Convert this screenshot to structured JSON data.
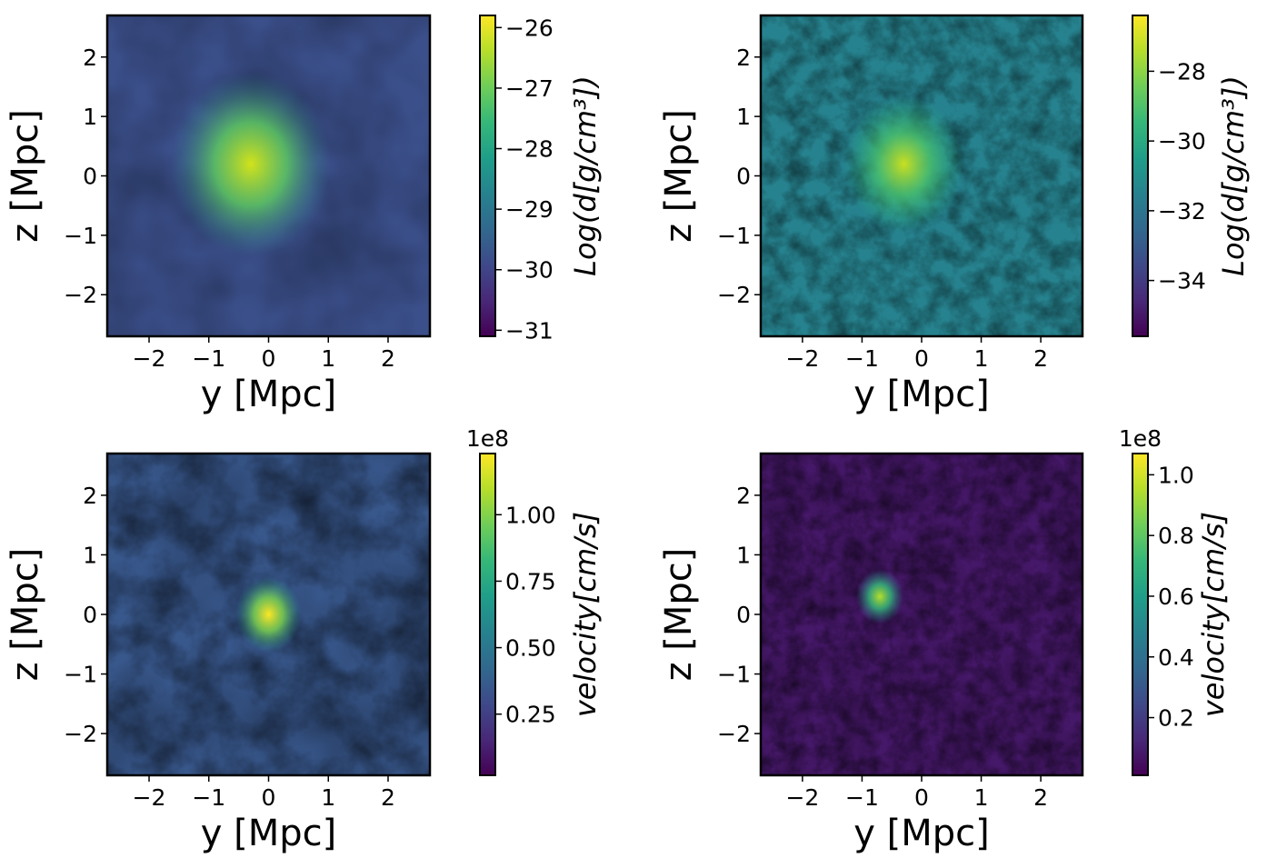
{
  "chart_data": [
    {
      "type": "heatmap",
      "quantity": "gas density (log)",
      "xlabel": "y [Mpc]",
      "ylabel": "z [Mpc]",
      "xlim": [
        -2.7,
        2.7
      ],
      "ylim": [
        -2.7,
        2.7
      ],
      "xticks": [
        -2,
        -1,
        0,
        1,
        2
      ],
      "yticks": [
        -2,
        -1,
        0,
        1,
        2
      ],
      "xtick_labels": [
        "−2",
        "−1",
        "0",
        "1",
        "2"
      ],
      "ytick_labels": [
        "−2",
        "−1",
        "0",
        "1",
        "2"
      ],
      "colormap": "viridis",
      "colorbar": {
        "label": "Log(d[g/cm³])",
        "vmin": -31.1,
        "vmax": -25.8,
        "ticks": [
          -31,
          -30,
          -29,
          -28,
          -27,
          -26
        ],
        "tick_labels": [
          "−31",
          "−30",
          "−29",
          "−28",
          "−27",
          "−26"
        ],
        "offset_text": ""
      },
      "features": {
        "peak_center": [
          -0.3,
          0.2
        ],
        "peak_value": -26.3,
        "background": -29.8,
        "structure": "smooth"
      }
    },
    {
      "type": "heatmap",
      "quantity": "gas density (log)",
      "xlabel": "y [Mpc]",
      "ylabel": "z [Mpc]",
      "xlim": [
        -2.7,
        2.7
      ],
      "ylim": [
        -2.7,
        2.7
      ],
      "xticks": [
        -2,
        -1,
        0,
        1,
        2
      ],
      "yticks": [
        -2,
        -1,
        0,
        1,
        2
      ],
      "xtick_labels": [
        "−2",
        "−1",
        "0",
        "1",
        "2"
      ],
      "ytick_labels": [
        "−2",
        "−1",
        "0",
        "1",
        "2"
      ],
      "colormap": "viridis",
      "colorbar": {
        "label": "Log(d[g/cm³])",
        "vmin": -35.6,
        "vmax": -26.4,
        "ticks": [
          -34,
          -32,
          -30,
          -28
        ],
        "tick_labels": [
          "−34",
          "−32",
          "−30",
          "−28"
        ],
        "offset_text": ""
      },
      "features": {
        "peak_center": [
          -0.3,
          0.2
        ],
        "peak_value": -27.5,
        "background": -31.5,
        "structure": "turbulent"
      }
    },
    {
      "type": "heatmap",
      "quantity": "velocity magnitude",
      "xlabel": "y [Mpc]",
      "ylabel": "z [Mpc]",
      "xlim": [
        -2.7,
        2.7
      ],
      "ylim": [
        -2.7,
        2.7
      ],
      "xticks": [
        -2,
        -1,
        0,
        1,
        2
      ],
      "yticks": [
        -2,
        -1,
        0,
        1,
        2
      ],
      "xtick_labels": [
        "−2",
        "−1",
        "0",
        "1",
        "2"
      ],
      "ytick_labels": [
        "−2",
        "−1",
        "0",
        "1",
        "2"
      ],
      "colormap": "viridis",
      "colorbar": {
        "label": "velocity[cm/s]",
        "vmin": 0.02,
        "vmax": 1.23,
        "ticks": [
          0.25,
          0.5,
          0.75,
          1.0
        ],
        "tick_labels": [
          "0.25",
          "0.50",
          "0.75",
          "1.00"
        ],
        "offset_text": "1e8"
      },
      "features": {
        "peak_center": [
          0.0,
          0.0
        ],
        "peak_value": 1.2,
        "background": 0.35,
        "structure": "filamentary"
      }
    },
    {
      "type": "heatmap",
      "quantity": "velocity magnitude",
      "xlabel": "y [Mpc]",
      "ylabel": "z [Mpc]",
      "xlim": [
        -2.7,
        2.7
      ],
      "ylim": [
        -2.7,
        2.7
      ],
      "xticks": [
        -2,
        -1,
        0,
        1,
        2
      ],
      "yticks": [
        -2,
        -1,
        0,
        1,
        2
      ],
      "xtick_labels": [
        "−2",
        "−1",
        "0",
        "1",
        "2"
      ],
      "ytick_labels": [
        "−2",
        "−1",
        "0",
        "1",
        "2"
      ],
      "colormap": "viridis",
      "colorbar": {
        "label": "velocity[cm/s]",
        "vmin": 0.01,
        "vmax": 1.07,
        "ticks": [
          0.2,
          0.4,
          0.6,
          0.8,
          1.0
        ],
        "tick_labels": [
          "0.2",
          "0.4",
          "0.6",
          "0.8",
          "1.0"
        ],
        "offset_text": "1e8"
      },
      "features": {
        "peak_center": [
          -0.7,
          0.3
        ],
        "peak_value": 0.95,
        "background": 0.08,
        "structure": "filamentary"
      }
    }
  ],
  "colors": {
    "viridis_stops": [
      "#440154",
      "#482878",
      "#3e4989",
      "#31688e",
      "#26828e",
      "#1f9e89",
      "#35b779",
      "#6ece58",
      "#b5de2b",
      "#fde725"
    ],
    "text": "#000000",
    "background": "#ffffff"
  }
}
